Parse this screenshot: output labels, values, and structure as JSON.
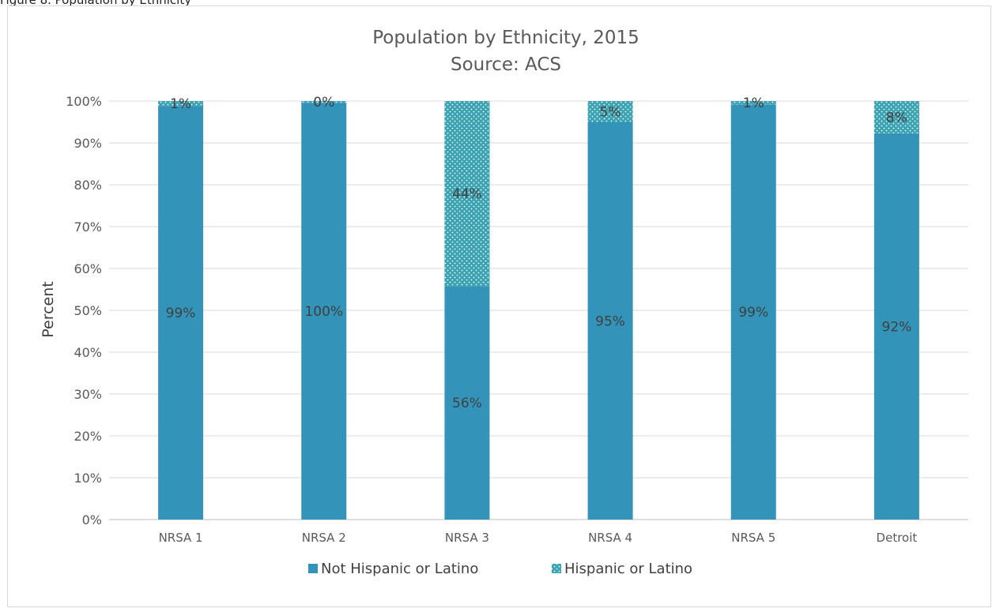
{
  "caption": "Figure 8. Population by Ethnicity",
  "chart_data": {
    "type": "bar",
    "stacked": true,
    "percent_stacked": true,
    "title": "Population by Ethnicity, 2015",
    "subtitle": "Source: ACS",
    "xlabel": "",
    "ylabel": "Percent",
    "ylim": [
      0,
      100
    ],
    "yticks": [
      "0%",
      "10%",
      "20%",
      "30%",
      "40%",
      "50%",
      "60%",
      "70%",
      "80%",
      "90%",
      "100%"
    ],
    "categories": [
      "NRSA 1",
      "NRSA 2",
      "NRSA 3",
      "NRSA 4",
      "NRSA 5",
      "Detroit"
    ],
    "series": [
      {
        "name": "Not Hispanic or Latino",
        "values": [
          98.8,
          99.6,
          55.8,
          95.0,
          99.2,
          92.3
        ],
        "labels": [
          "99%",
          "100%",
          "56%",
          "95%",
          "99%",
          "92%"
        ],
        "color": "#3393b8",
        "pattern": "solid"
      },
      {
        "name": "Hispanic or Latino",
        "values": [
          1.2,
          0.4,
          44.2,
          5.0,
          0.8,
          7.7
        ],
        "labels": [
          "1%",
          "0%",
          "44%",
          "5%",
          "1%",
          "8%"
        ],
        "color": "#3aa3b3",
        "pattern": "dotted"
      }
    ],
    "grid": true,
    "legend_position": "bottom"
  }
}
